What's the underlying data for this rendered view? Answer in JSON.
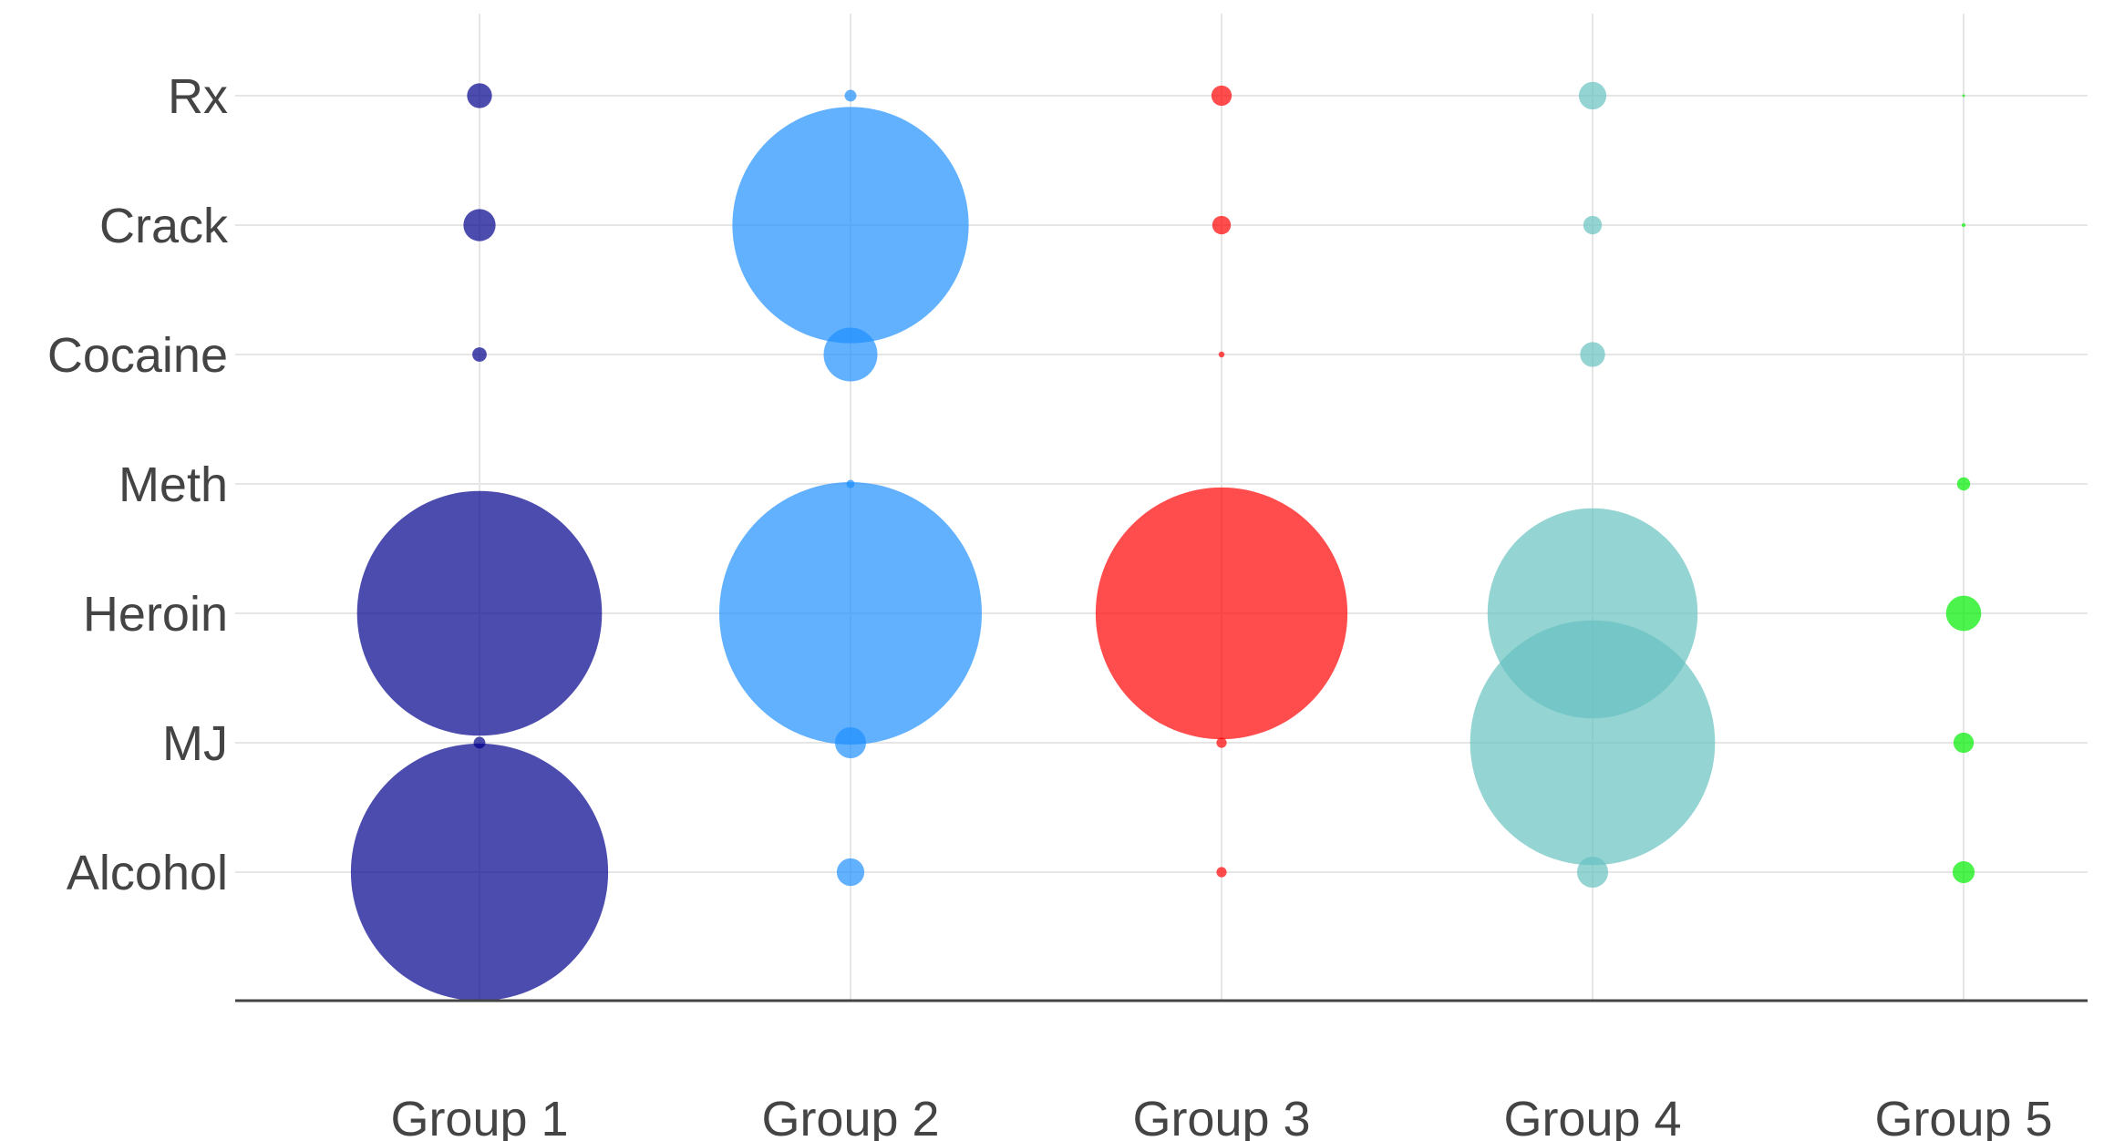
{
  "chart_data": {
    "type": "scatter",
    "title": "",
    "xlabel": "",
    "ylabel": "",
    "x_categories": [
      "Group 1",
      "Group 2",
      "Group 3",
      "Group 4",
      "Group 5"
    ],
    "y_categories": [
      "Alcohol",
      "MJ",
      "Heroin",
      "Meth",
      "Cocaine",
      "Crack",
      "Rx"
    ],
    "grid": true,
    "legend": "none",
    "size_unit": "relative bubble area (largest = 100)",
    "series": [
      {
        "group": "Group 1",
        "color": "#00008b",
        "sizes": {
          "Alcohol": 96.0,
          "MJ": 0.2,
          "Heroin": 87.0,
          "Meth": 0,
          "Cocaine": 0.3,
          "Crack": 1.5,
          "Rx": 0.9
        }
      },
      {
        "group": "Group 2",
        "color": "#1e90ff",
        "sizes": {
          "Alcohol": 1.1,
          "MJ": 1.4,
          "Heroin": 100.0,
          "Meth": 0.1,
          "Cocaine": 4.2,
          "Crack": 81.0,
          "Rx": 0.2
        }
      },
      {
        "group": "Group 3",
        "color": "#ff0000",
        "sizes": {
          "Alcohol": 0.15,
          "MJ": 0.15,
          "Heroin": 92.0,
          "Meth": 0,
          "Cocaine": 0.05,
          "Crack": 0.5,
          "Rx": 0.6
        }
      },
      {
        "group": "Group 4",
        "color": "#66c2c0",
        "sizes": {
          "Alcohol": 1.4,
          "MJ": 87.0,
          "Heroin": 64.0,
          "Meth": 0,
          "Cocaine": 0.9,
          "Crack": 0.5,
          "Rx": 1.1
        }
      },
      {
        "group": "Group 5",
        "color": "#00ee00",
        "sizes": {
          "Alcohol": 0.7,
          "MJ": 0.6,
          "Heroin": 1.8,
          "Meth": 0.25,
          "Cocaine": 0,
          "Crack": 0.02,
          "Rx": 0.01
        }
      }
    ]
  }
}
